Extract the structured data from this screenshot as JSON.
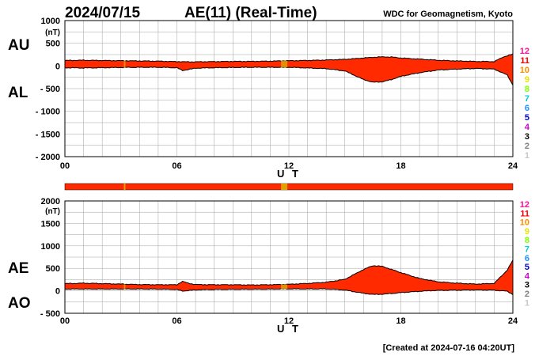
{
  "header": {
    "date": "2024/07/15",
    "title": "AE(11) (Real-Time)",
    "source": "WDC for Geomagnetism, Kyoto"
  },
  "footer": {
    "created": "[Created at 2024-07-16 04:20UT]"
  },
  "station_legend": {
    "items": [
      "12",
      "11",
      "10",
      "9",
      "8",
      "7",
      "6",
      "5",
      "4",
      "3",
      "2",
      "1"
    ],
    "colors": [
      "#ff1493",
      "#ff0000",
      "#ff8c00",
      "#e6e600",
      "#7fff00",
      "#00ced1",
      "#1e90ff",
      "#0000cd",
      "#cc00cc",
      "#000000",
      "#808080",
      "#c8c8c8"
    ]
  },
  "colors": {
    "fill": "#ff2a00",
    "sparse_marker": "#e0a000",
    "grid": "#a0a0a0",
    "line": "#000000"
  },
  "chart_data": [
    {
      "type": "area",
      "name": "AU / AL",
      "labels": [
        "AU",
        "AL"
      ],
      "xlabel": "U T",
      "xlim": [
        0,
        24
      ],
      "xticks": [
        "00",
        "06",
        "12",
        "18",
        "24"
      ],
      "ylim": [
        -2000,
        1000
      ],
      "yunit": "(nT)",
      "yticks": [
        1000,
        500,
        0,
        -500,
        -1000,
        -1500,
        -2000
      ],
      "ytick_labels": [
        "1000",
        "500",
        "0",
        "- 500",
        "- 1000",
        "- 1500",
        "- 2000"
      ],
      "grid": true,
      "series": [
        {
          "name": "AU",
          "x": [
            0,
            1,
            2,
            3,
            4,
            5,
            6,
            6.5,
            7,
            8,
            9,
            10,
            11,
            12,
            13,
            14,
            15,
            16,
            16.5,
            17,
            17.5,
            18,
            19,
            20,
            21,
            22,
            23,
            23.5,
            24
          ],
          "values": [
            120,
            125,
            120,
            115,
            110,
            105,
            95,
            90,
            90,
            95,
            100,
            100,
            105,
            115,
            120,
            130,
            145,
            175,
            190,
            200,
            195,
            175,
            150,
            125,
            110,
            100,
            95,
            200,
            260
          ]
        },
        {
          "name": "AL",
          "x": [
            0,
            1,
            2,
            3,
            4,
            5,
            6,
            6.3,
            6.6,
            7,
            8,
            9,
            10,
            11,
            12,
            13,
            14,
            15,
            16,
            16.5,
            17,
            17.5,
            18,
            19,
            20,
            21,
            22,
            23,
            23.7,
            24
          ],
          "values": [
            -40,
            -45,
            -40,
            -35,
            -30,
            -30,
            -40,
            -100,
            -80,
            -50,
            -40,
            -35,
            -30,
            -30,
            -30,
            -45,
            -60,
            -110,
            -300,
            -360,
            -350,
            -300,
            -230,
            -150,
            -90,
            -70,
            -55,
            -70,
            -200,
            -420
          ]
        }
      ]
    },
    {
      "type": "area",
      "name": "AE / AO",
      "labels": [
        "AE",
        "AO"
      ],
      "xlabel": "U T",
      "xlim": [
        0,
        24
      ],
      "xticks": [
        "00",
        "06",
        "12",
        "18",
        "24"
      ],
      "ylim": [
        -500,
        2000
      ],
      "yunit": "(nT)",
      "yticks": [
        2000,
        1500,
        1000,
        500,
        0,
        -500
      ],
      "ytick_labels": [
        "2000",
        "1500",
        "1000",
        "500",
        "0",
        "- 500"
      ],
      "grid": true,
      "series": [
        {
          "name": "AE",
          "x": [
            0,
            1,
            2,
            3,
            4,
            5,
            6,
            6.3,
            6.6,
            7,
            8,
            9,
            10,
            11,
            12,
            13,
            14,
            15,
            16,
            16.5,
            17,
            17.5,
            18,
            19,
            20,
            21,
            22,
            23,
            23.7,
            24
          ],
          "values": [
            160,
            170,
            160,
            150,
            140,
            135,
            135,
            210,
            170,
            140,
            135,
            135,
            130,
            135,
            145,
            165,
            190,
            255,
            475,
            560,
            545,
            475,
            405,
            275,
            200,
            170,
            150,
            165,
            460,
            680
          ]
        },
        {
          "name": "AO",
          "x": [
            0,
            1,
            2,
            3,
            4,
            5,
            6,
            6.3,
            6.6,
            7,
            8,
            9,
            10,
            11,
            12,
            13,
            14,
            15,
            16,
            16.5,
            17,
            17.5,
            18,
            19,
            20,
            21,
            22,
            23,
            23.7,
            24
          ],
          "values": [
            40,
            40,
            40,
            40,
            40,
            38,
            28,
            -5,
            5,
            20,
            30,
            32,
            35,
            38,
            42,
            40,
            42,
            17,
            -55,
            -80,
            -75,
            -60,
            -40,
            -10,
            10,
            15,
            20,
            15,
            -10,
            -80
          ]
        }
      ]
    }
  ]
}
